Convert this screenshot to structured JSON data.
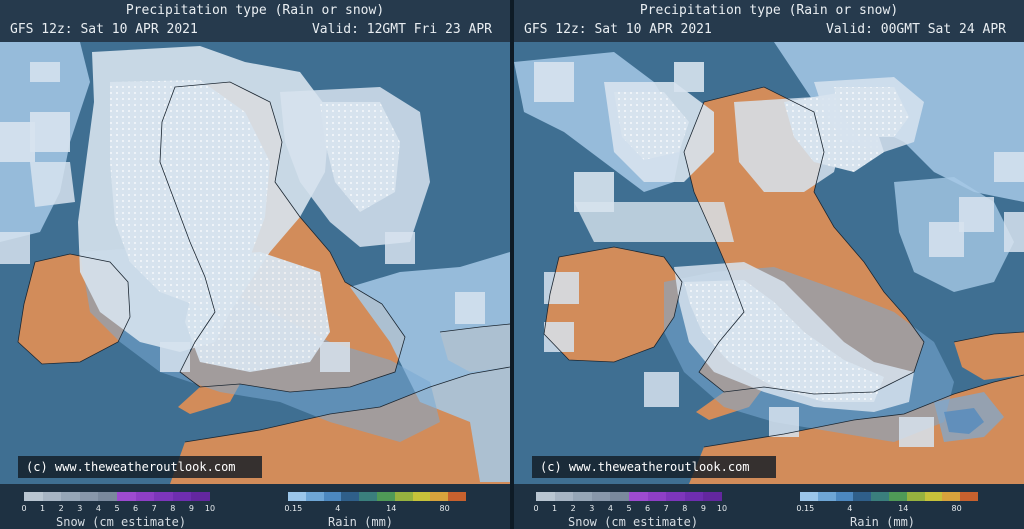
{
  "panels": [
    {
      "title": "Precipitation type (Rain or snow)",
      "model": "GFS 12z: Sat 10 APR 2021",
      "valid": "Valid: 12GMT Fri 23 APR",
      "credit": "(c) www.theweatheroutlook.com"
    },
    {
      "title": "Precipitation type (Rain or snow)",
      "model": "GFS 12z: Sat 10 APR 2021",
      "valid": "Valid: 00GMT Sat 24 APR",
      "credit": "(c) www.theweatheroutlook.com"
    }
  ],
  "legend": {
    "snow_label": "Snow (cm estimate)",
    "rain_label": "Rain (mm)",
    "snow_ticks": [
      "0",
      "1",
      "2",
      "3",
      "4",
      "5",
      "6",
      "7",
      "8",
      "9",
      "10"
    ],
    "rain_ticks": [
      "0.15",
      "4",
      "14",
      "80"
    ],
    "snow_colors": [
      "#b9c6d2",
      "#a7b5c4",
      "#96a6b7",
      "#8897aa",
      "#7a899d",
      "#9d4bd0",
      "#8e3fc6",
      "#7d36bb",
      "#6e2eb0",
      "#63279f"
    ],
    "rain_colors": [
      "#9bc6ea",
      "#6ea6d6",
      "#4c88c0",
      "#2f5f8a",
      "#3a7f7d",
      "#4f9a57",
      "#96b23f",
      "#c6c23a",
      "#d8a33c",
      "#c7612e"
    ]
  },
  "colors": {
    "sea": "#3f6f92",
    "land": "#d28c5a",
    "rain_light": "#a6c9e6",
    "rain_medium": "#7aa9d4",
    "snow_pale": "#d7e3ee"
  }
}
